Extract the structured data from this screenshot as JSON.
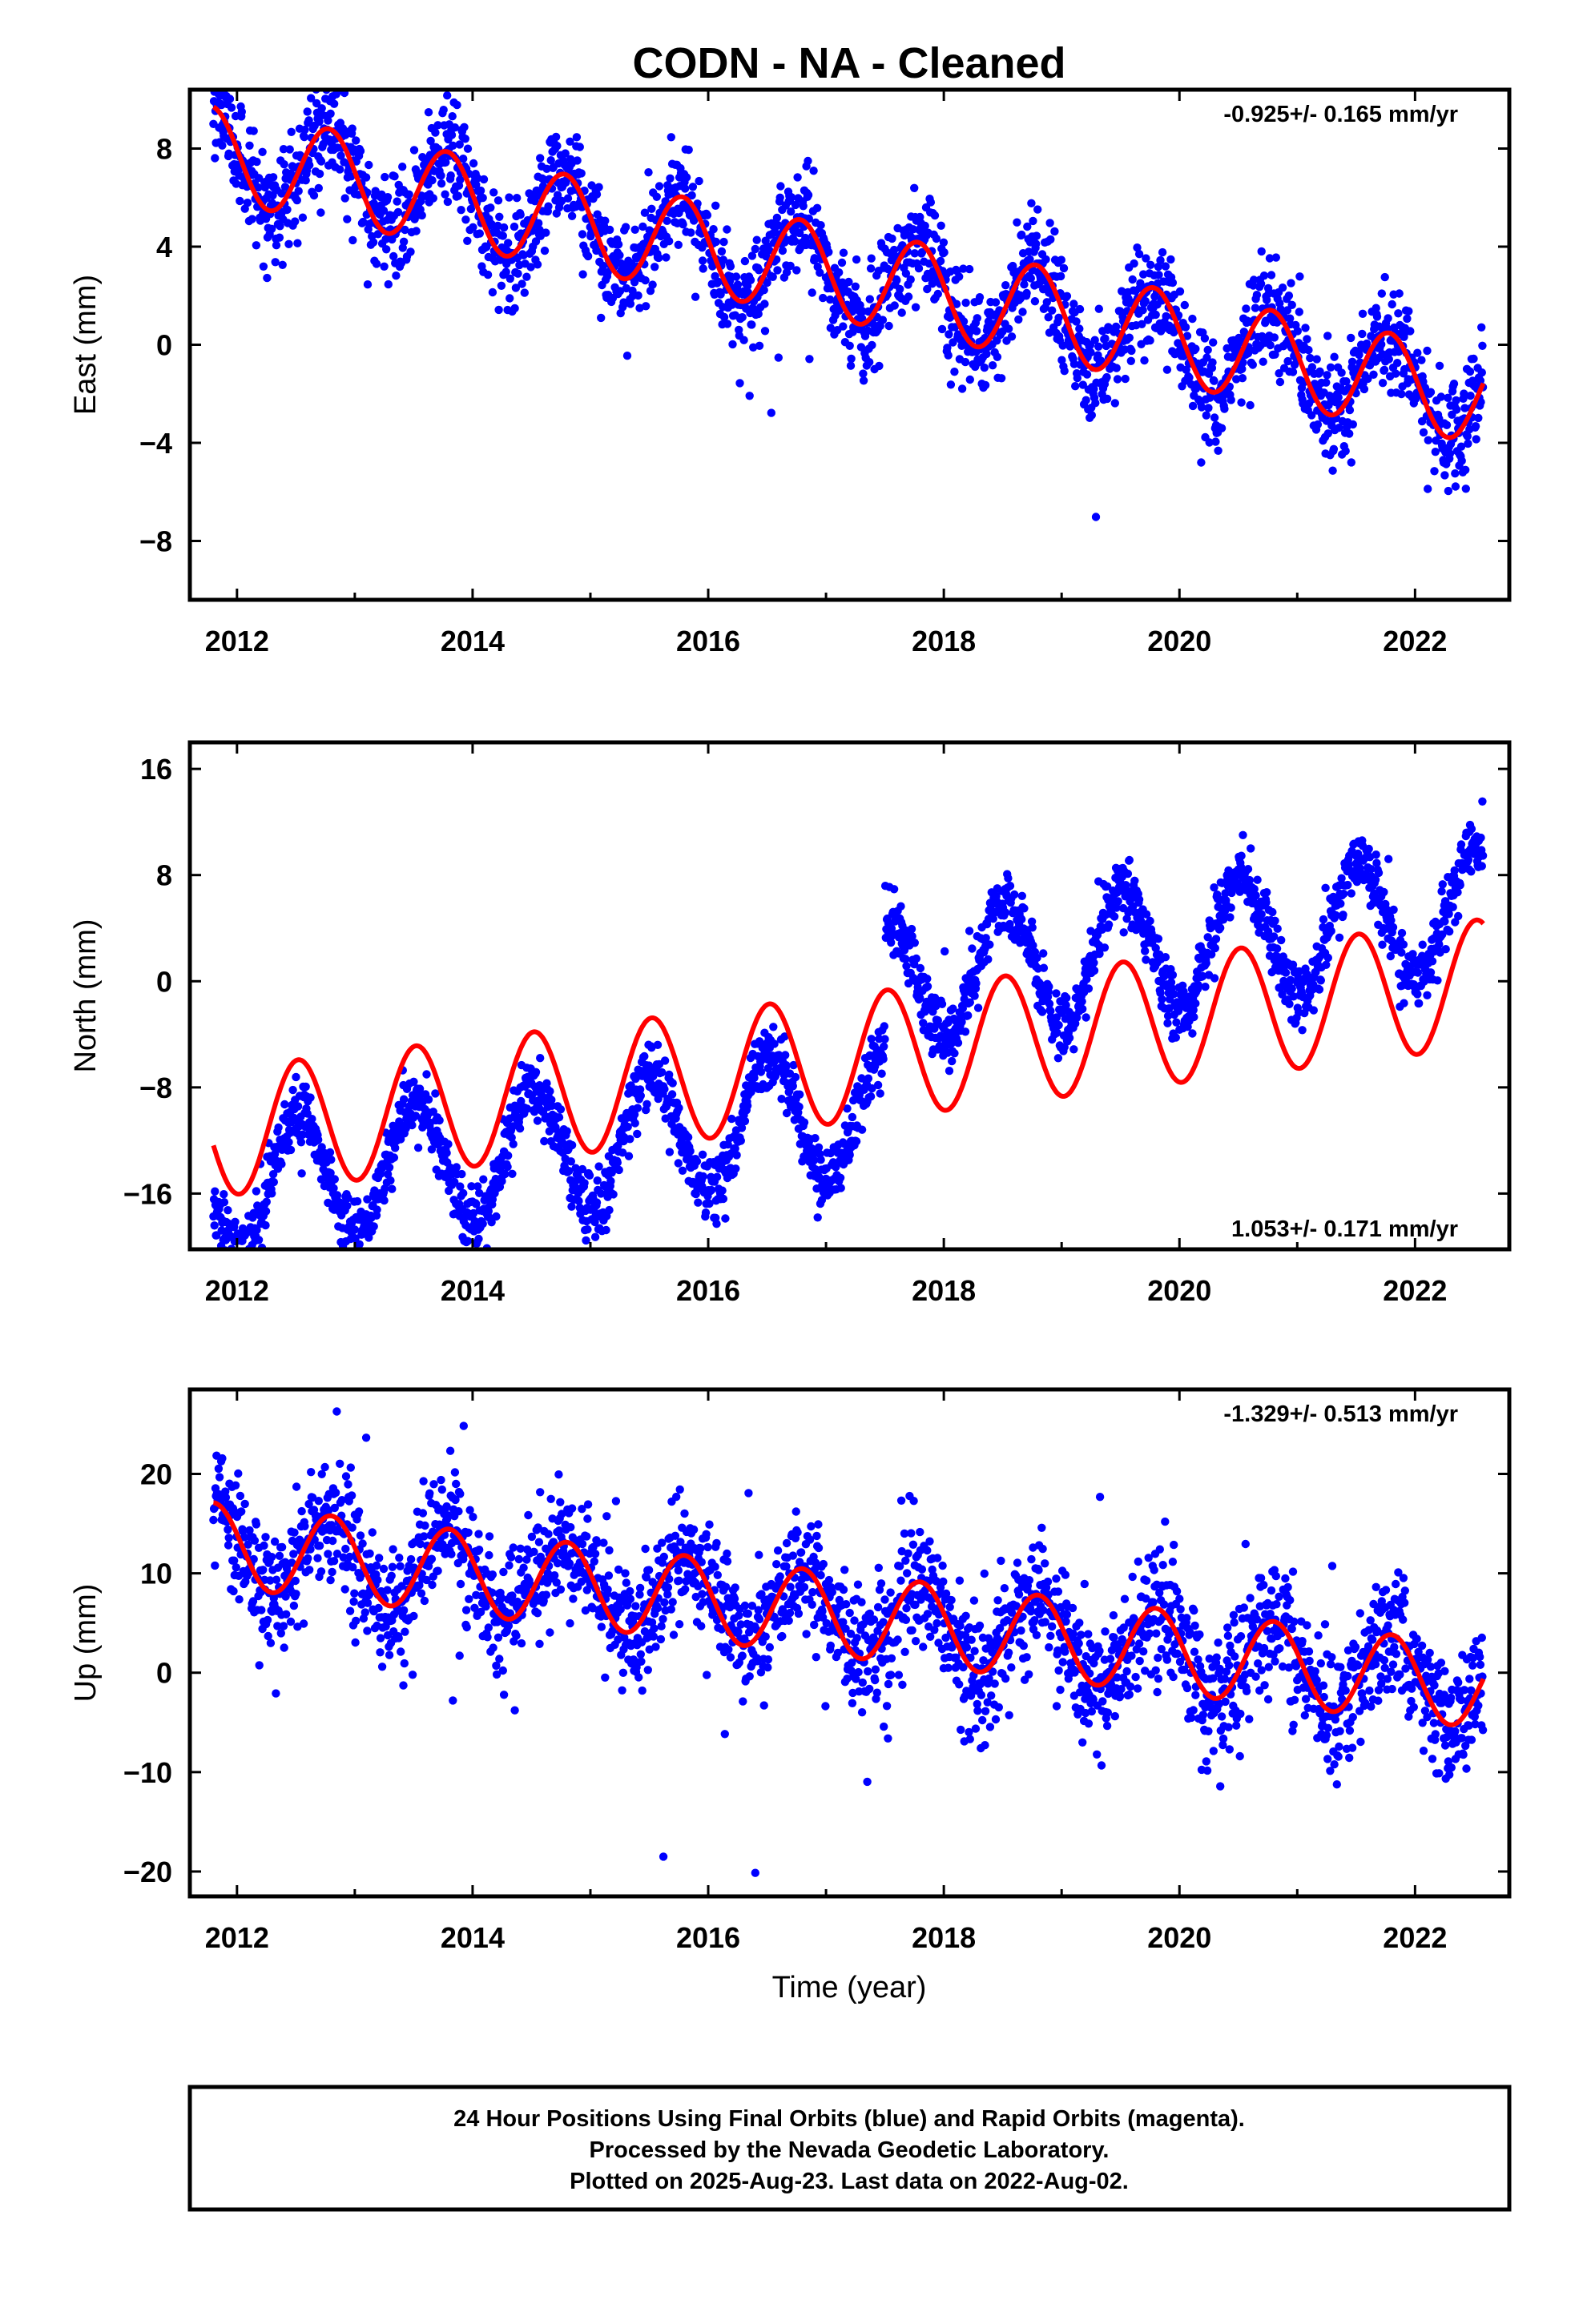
{
  "title": "CODN  - NA - Cleaned",
  "xlabel": "Time (year)",
  "footer": {
    "lines": [
      "24 Hour Positions Using Final Orbits (blue) and Rapid Orbits (magenta).",
      "Processed by the Nevada Geodetic Laboratory.",
      "Plotted on 2025-Aug-23. Last data on 2022-Aug-02."
    ]
  },
  "colors": {
    "observations": "#0000ff",
    "model": "#ff0000",
    "frame": "#000000"
  },
  "chart_data": [
    {
      "type": "scatter",
      "component": "east",
      "ylabel": "East (mm)",
      "rate_label": "-0.925+/- 0.165 mm/yr",
      "rate_position": "top-right",
      "xlim": [
        2011.6,
        2022.8
      ],
      "ylim": [
        -10.4,
        10.4
      ],
      "xticks": [
        2012,
        2014,
        2016,
        2018,
        2020,
        2022
      ],
      "yticks": [
        8,
        4,
        0,
        -4,
        -8
      ],
      "grid": false,
      "data_span": [
        2011.8,
        2022.58
      ],
      "model": {
        "rate": -0.925,
        "offset": 3.0,
        "amplitude": 1.9,
        "phase_peak": 0.78,
        "offsets": []
      },
      "series": [
        {
          "kind": "points",
          "noise": 1.05
        },
        {
          "kind": "model_line"
        }
      ]
    },
    {
      "type": "scatter",
      "component": "north",
      "ylabel": "North (mm)",
      "rate_label": "1.053+/- 0.171 mm/yr",
      "rate_position": "bottom-right",
      "xlim": [
        2011.6,
        2022.8
      ],
      "ylim": [
        -20.2,
        18.0
      ],
      "xticks": [
        2012,
        2014,
        2016,
        2018,
        2020,
        2022
      ],
      "yticks": [
        16,
        8,
        0,
        -8,
        -16
      ],
      "grid": false,
      "data_span": [
        2011.8,
        2022.58
      ],
      "model": {
        "rate": 1.053,
        "offset": -6.0,
        "amplitude": 4.8,
        "phase_peak": 0.52,
        "offsets": []
      },
      "data_shift": {
        "before_2017_5": -4.2,
        "after_2017_5": 5.5
      },
      "series": [
        {
          "kind": "points",
          "noise": 1.2
        },
        {
          "kind": "model_line"
        }
      ]
    },
    {
      "type": "scatter",
      "component": "up",
      "ylabel": "Up (mm)",
      "rate_label": "-1.329+/- 0.513 mm/yr",
      "rate_position": "top-right",
      "xlim": [
        2011.6,
        2022.8
      ],
      "ylim": [
        -22.5,
        28.5
      ],
      "xticks": [
        2012,
        2014,
        2016,
        2018,
        2020,
        2022
      ],
      "yticks": [
        20,
        10,
        0,
        -10,
        -20
      ],
      "grid": false,
      "data_span": [
        2011.8,
        2022.58
      ],
      "model": {
        "rate": -1.329,
        "offset": 6.0,
        "amplitude": 4.2,
        "phase_peak": 0.8,
        "offsets": []
      },
      "series": [
        {
          "kind": "points",
          "noise": 3.2
        },
        {
          "kind": "model_line"
        }
      ]
    }
  ]
}
